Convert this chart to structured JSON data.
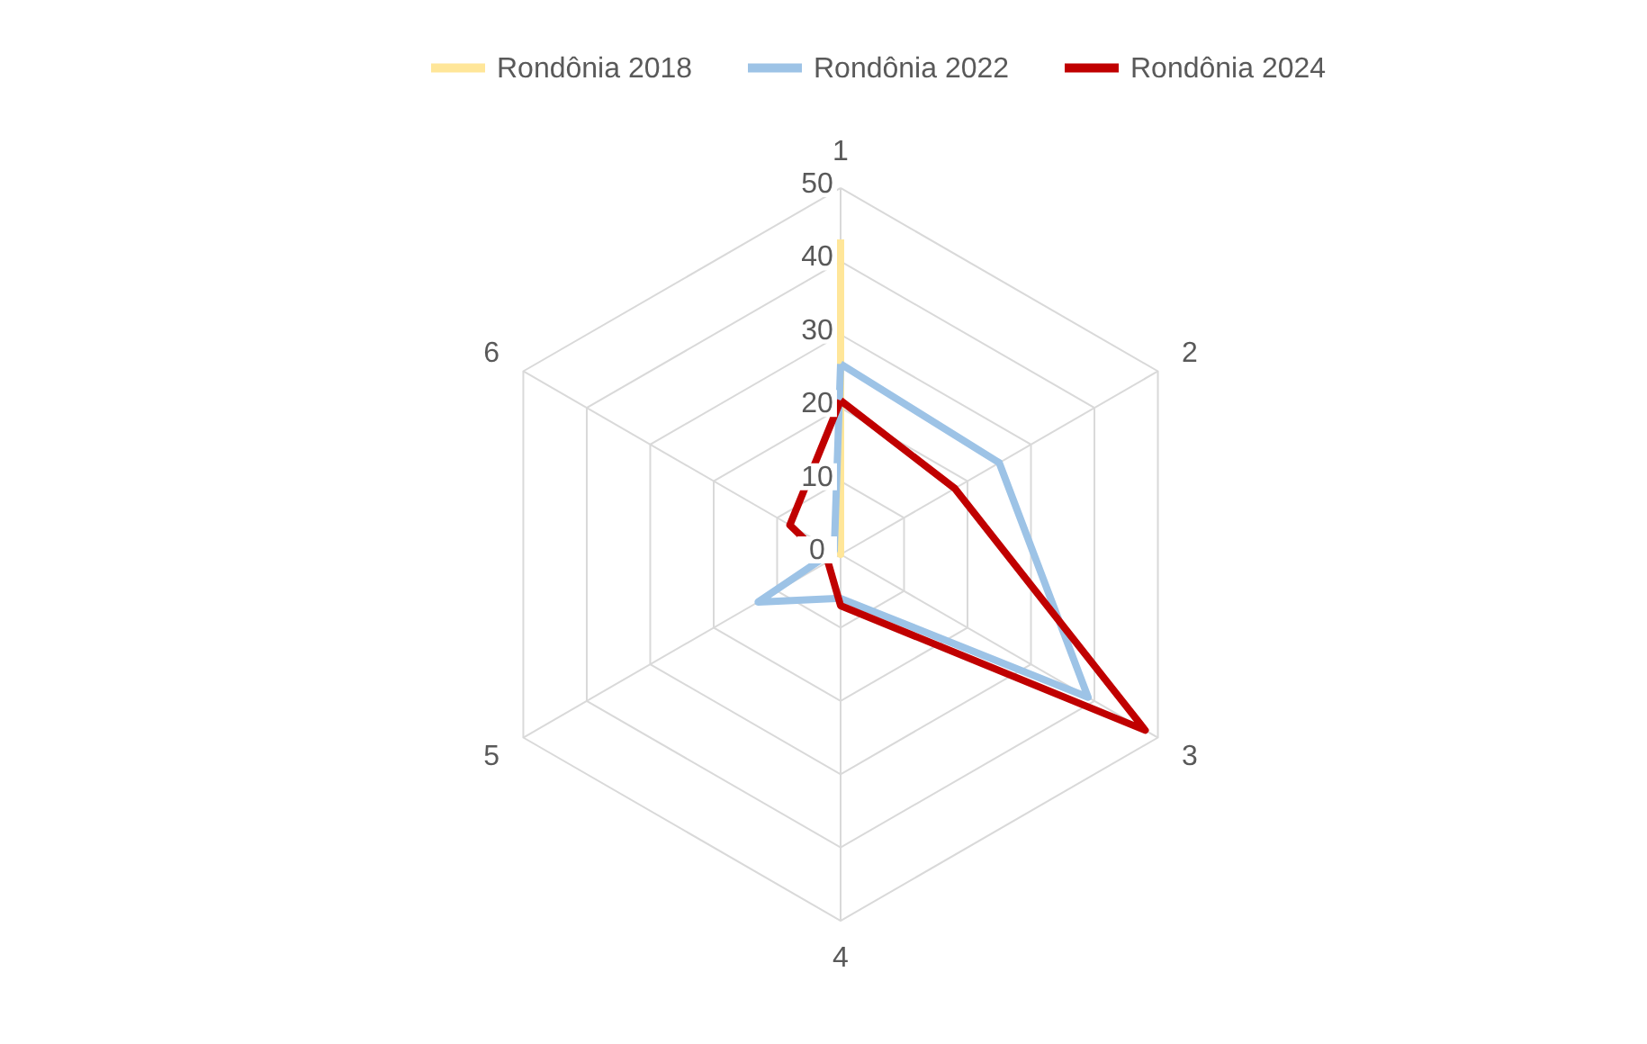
{
  "chart_data": {
    "type": "radar",
    "categories": [
      "1",
      "2",
      "3",
      "4",
      "5",
      "6"
    ],
    "ylim": [
      0,
      50
    ],
    "yticks": [
      0,
      10,
      20,
      30,
      40,
      50
    ],
    "grid": true,
    "legend": "top",
    "series": [
      {
        "name": "Rondônia 2018",
        "color": "#ffe699",
        "values": [
          43,
          0,
          0,
          0,
          0,
          0
        ]
      },
      {
        "name": "Rondônia 2022",
        "color": "#9dc3e6",
        "values": [
          26,
          25,
          39,
          6,
          13,
          1
        ]
      },
      {
        "name": "Rondônia 2024",
        "color": "#c00000",
        "values": [
          21,
          18,
          48,
          7,
          2,
          8
        ]
      }
    ]
  }
}
